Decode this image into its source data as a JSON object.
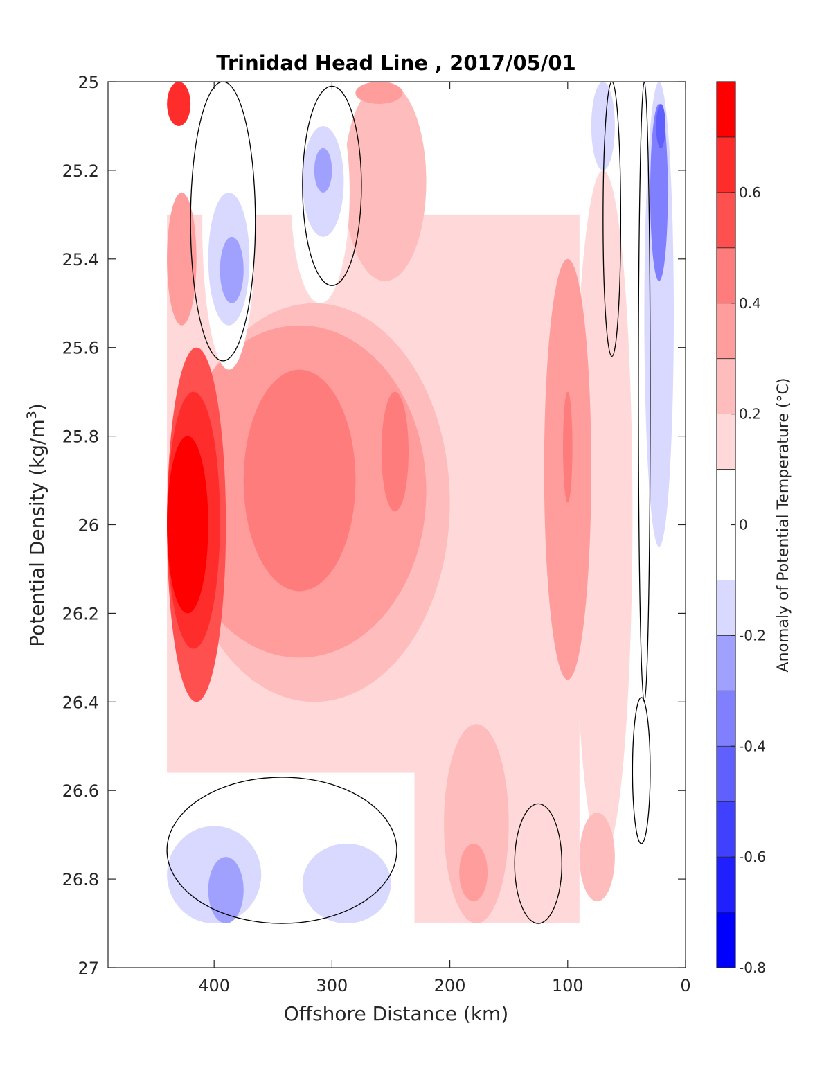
{
  "chart_data": {
    "type": "heatmap",
    "subtype": "filled-contour",
    "title": "Trinidad Head Line , 2017/05/01",
    "xlabel": "Offshore Distance (km)",
    "ylabel_main": "Potential Density (kg/m",
    "ylabel_sup": "3",
    "ylabel_close": ")",
    "colorbar_label": "Anomaly of Potential Temperature (°C)",
    "x_reversed": true,
    "y_reversed": true,
    "xlim": [
      0,
      490
    ],
    "ylim": [
      25,
      27
    ],
    "xticks": [
      400,
      300,
      200,
      100,
      0
    ],
    "xtick_labels": [
      "400",
      "300",
      "200",
      "100",
      "0"
    ],
    "yticks": [
      25,
      25.2,
      25.4,
      25.6,
      25.8,
      26,
      26.2,
      26.4,
      26.6,
      26.8,
      27
    ],
    "ytick_labels": [
      "25",
      "25.2",
      "25.4",
      "25.6",
      "25.8",
      "26",
      "26.2",
      "26.4",
      "26.6",
      "26.8",
      "27"
    ],
    "clim": [
      -0.8,
      0.8
    ],
    "cticks": [
      -0.8,
      -0.6,
      -0.4,
      -0.2,
      0,
      0.2,
      0.4,
      0.6
    ],
    "ctick_labels": [
      "-0.8",
      "-0.6",
      "-0.4",
      "-0.2",
      "0",
      "0.2",
      "0.4",
      "0.6"
    ],
    "colormap": [
      {
        "from": -0.8,
        "to": -0.7,
        "color": "#0000ff"
      },
      {
        "from": -0.7,
        "to": -0.6,
        "color": "#2020ff"
      },
      {
        "from": -0.6,
        "to": -0.5,
        "color": "#4040ff"
      },
      {
        "from": -0.5,
        "to": -0.4,
        "color": "#6060ff"
      },
      {
        "from": -0.4,
        "to": -0.3,
        "color": "#8080ff"
      },
      {
        "from": -0.3,
        "to": -0.2,
        "color": "#a0a0ff"
      },
      {
        "from": -0.2,
        "to": -0.1,
        "color": "#d9d9ff"
      },
      {
        "from": -0.1,
        "to": 0.1,
        "color": "#ffffff"
      },
      {
        "from": 0.1,
        "to": 0.2,
        "color": "#ffd9d9"
      },
      {
        "from": 0.2,
        "to": 0.3,
        "color": "#ffbcbc"
      },
      {
        "from": 0.3,
        "to": 0.4,
        "color": "#ff9c9c"
      },
      {
        "from": 0.4,
        "to": 0.5,
        "color": "#ff7c7c"
      },
      {
        "from": 0.5,
        "to": 0.6,
        "color": "#ff5050"
      },
      {
        "from": 0.6,
        "to": 0.7,
        "color": "#ff2c2c"
      },
      {
        "from": 0.7,
        "to": 0.8,
        "color": "#ff0000"
      }
    ],
    "grid": false,
    "data_extent": {
      "x": [
        20,
        440
      ],
      "y": [
        25,
        26.9
      ]
    },
    "regions": [
      {
        "name": "Background (white)",
        "x": [
          20,
          440
        ],
        "y": [
          25.0,
          26.9
        ],
        "value": 0.0,
        "shape": "rect"
      },
      {
        "name": "Column 90-230 km",
        "x": [
          90,
          230
        ],
        "y": [
          25.3,
          26.9
        ],
        "value": 0.15,
        "shape": "rect"
      },
      {
        "name": "Column 45-95 km",
        "x": [
          45,
          95
        ],
        "y": [
          25.2,
          26.75
        ],
        "value": 0.2,
        "shape": "ellipse"
      },
      {
        "name": "Core 100 km",
        "x": [
          80,
          120
        ],
        "y": [
          25.4,
          26.35
        ],
        "value": 0.35,
        "shape": "ellipse"
      },
      {
        "name": "Core 100 km max",
        "x": [
          96,
          104
        ],
        "y": [
          25.7,
          25.95
        ],
        "value": 0.45,
        "shape": "ellipse"
      },
      {
        "name": "Deep patch 180 km",
        "x": [
          150,
          205
        ],
        "y": [
          26.45,
          26.9
        ],
        "value": 0.25,
        "shape": "ellipse"
      },
      {
        "name": "Deep core 180 km",
        "x": [
          168,
          192
        ],
        "y": [
          26.72,
          26.85
        ],
        "value": 0.35,
        "shape": "ellipse"
      },
      {
        "name": "Deep patch 75 km",
        "x": [
          60,
          90
        ],
        "y": [
          26.65,
          26.85
        ],
        "value": 0.25,
        "shape": "ellipse"
      },
      {
        "name": "Band 220-440 km",
        "x": [
          220,
          440
        ],
        "y": [
          25.3,
          26.56
        ],
        "value": 0.15,
        "shape": "rect"
      },
      {
        "name": "Band 200-430 km",
        "x": [
          200,
          430
        ],
        "y": [
          25.5,
          26.4
        ],
        "value": 0.25,
        "shape": "ellipse"
      },
      {
        "name": "Band 220-435 km",
        "x": [
          220,
          435
        ],
        "y": [
          25.55,
          26.3
        ],
        "value": 0.35,
        "shape": "ellipse"
      },
      {
        "name": "Core 330 km",
        "x": [
          280,
          375
        ],
        "y": [
          25.65,
          26.15
        ],
        "value": 0.45,
        "shape": "ellipse"
      },
      {
        "name": "Core 245 km",
        "x": [
          235,
          258
        ],
        "y": [
          25.7,
          25.97
        ],
        "value": 0.45,
        "shape": "ellipse"
      },
      {
        "name": "Core 420 km",
        "x": [
          390,
          440
        ],
        "y": [
          25.6,
          26.4
        ],
        "value": 0.55,
        "shape": "ellipse"
      },
      {
        "name": "Core 420 km inner",
        "x": [
          395,
          440
        ],
        "y": [
          25.7,
          26.28
        ],
        "value": 0.65,
        "shape": "ellipse"
      },
      {
        "name": "Core 420 km max",
        "x": [
          405,
          440
        ],
        "y": [
          25.8,
          26.2
        ],
        "value": 0.75,
        "shape": "ellipse"
      },
      {
        "name": "Top band 240 km",
        "x": [
          220,
          290
        ],
        "y": [
          25.0,
          25.45
        ],
        "value": 0.25,
        "shape": "ellipse"
      },
      {
        "name": "Top 260 km",
        "x": [
          240,
          280
        ],
        "y": [
          25.0,
          25.05
        ],
        "value": 0.35,
        "shape": "ellipse"
      },
      {
        "name": "Top 430 km",
        "x": [
          420,
          440
        ],
        "y": [
          25.0,
          25.1
        ],
        "value": 0.65,
        "shape": "ellipse"
      },
      {
        "name": "Upper 420 km",
        "x": [
          415,
          440
        ],
        "y": [
          25.25,
          25.55
        ],
        "value": 0.35,
        "shape": "ellipse"
      },
      {
        "name": "Cold eddy 320 km",
        "x": [
          285,
          335
        ],
        "y": [
          25.0,
          25.5
        ],
        "value": 0.0,
        "shape": "ellipse"
      },
      {
        "name": "Cold eddy 320 km core",
        "x": [
          290,
          325
        ],
        "y": [
          25.1,
          25.35
        ],
        "value": -0.15,
        "shape": "ellipse"
      },
      {
        "name": "Cold eddy 320 km max",
        "x": [
          300,
          315
        ],
        "y": [
          25.15,
          25.25
        ],
        "value": -0.25,
        "shape": "ellipse"
      },
      {
        "name": "Cold eddy 390 km",
        "x": [
          365,
          410
        ],
        "y": [
          25.0,
          25.65
        ],
        "value": 0.0,
        "shape": "ellipse"
      },
      {
        "name": "Cold eddy 390 km core",
        "x": [
          370,
          405
        ],
        "y": [
          25.25,
          25.55
        ],
        "value": -0.15,
        "shape": "ellipse"
      },
      {
        "name": "Cold eddy 390 km max",
        "x": [
          375,
          395
        ],
        "y": [
          25.35,
          25.5
        ],
        "value": -0.25,
        "shape": "ellipse"
      },
      {
        "name": "Cold top 70 km",
        "x": [
          60,
          80
        ],
        "y": [
          25.0,
          25.2
        ],
        "value": -0.15,
        "shape": "ellipse"
      },
      {
        "name": "Coastal cold band",
        "x": [
          10,
          35
        ],
        "y": [
          25.0,
          26.05
        ],
        "value": -0.15,
        "shape": "ellipse"
      },
      {
        "name": "Coastal cold core",
        "x": [
          15,
          30
        ],
        "y": [
          25.05,
          25.45
        ],
        "value": -0.35,
        "shape": "ellipse"
      },
      {
        "name": "Coastal cold max",
        "x": [
          17,
          25
        ],
        "y": [
          25.05,
          25.15
        ],
        "value": -0.45,
        "shape": "ellipse"
      },
      {
        "name": "Deep cold 400 km",
        "x": [
          360,
          440
        ],
        "y": [
          26.68,
          26.9
        ],
        "value": -0.15,
        "shape": "ellipse"
      },
      {
        "name": "Deep cold 400 km core",
        "x": [
          375,
          405
        ],
        "y": [
          26.75,
          26.9
        ],
        "value": -0.25,
        "shape": "ellipse"
      },
      {
        "name": "Deep cold 300 km",
        "x": [
          250,
          325
        ],
        "y": [
          26.72,
          26.9
        ],
        "value": -0.15,
        "shape": "ellipse"
      }
    ],
    "zero_contours": [
      {
        "name": "Eddy contour 310 km",
        "x": [
          275,
          325
        ],
        "y": [
          25.01,
          25.46
        ]
      },
      {
        "name": "Eddy contour 390 km",
        "x": [
          365,
          420
        ],
        "y": [
          25.0,
          25.63
        ]
      },
      {
        "name": "Coastal contour 35 km",
        "x": [
          30,
          40
        ],
        "y": [
          25.0,
          26.4
        ]
      },
      {
        "name": "Contour 60 km",
        "x": [
          55,
          70
        ],
        "y": [
          25.0,
          25.62
        ]
      },
      {
        "name": "Contour 40 km deep",
        "x": [
          30,
          45
        ],
        "y": [
          26.39,
          26.72
        ]
      },
      {
        "name": "Contour 130 km deep",
        "x": [
          105,
          145
        ],
        "y": [
          26.63,
          26.9
        ]
      },
      {
        "name": "Deep boundary 245-440 km",
        "x": [
          245,
          440
        ],
        "y": [
          26.57,
          26.9
        ]
      }
    ]
  }
}
